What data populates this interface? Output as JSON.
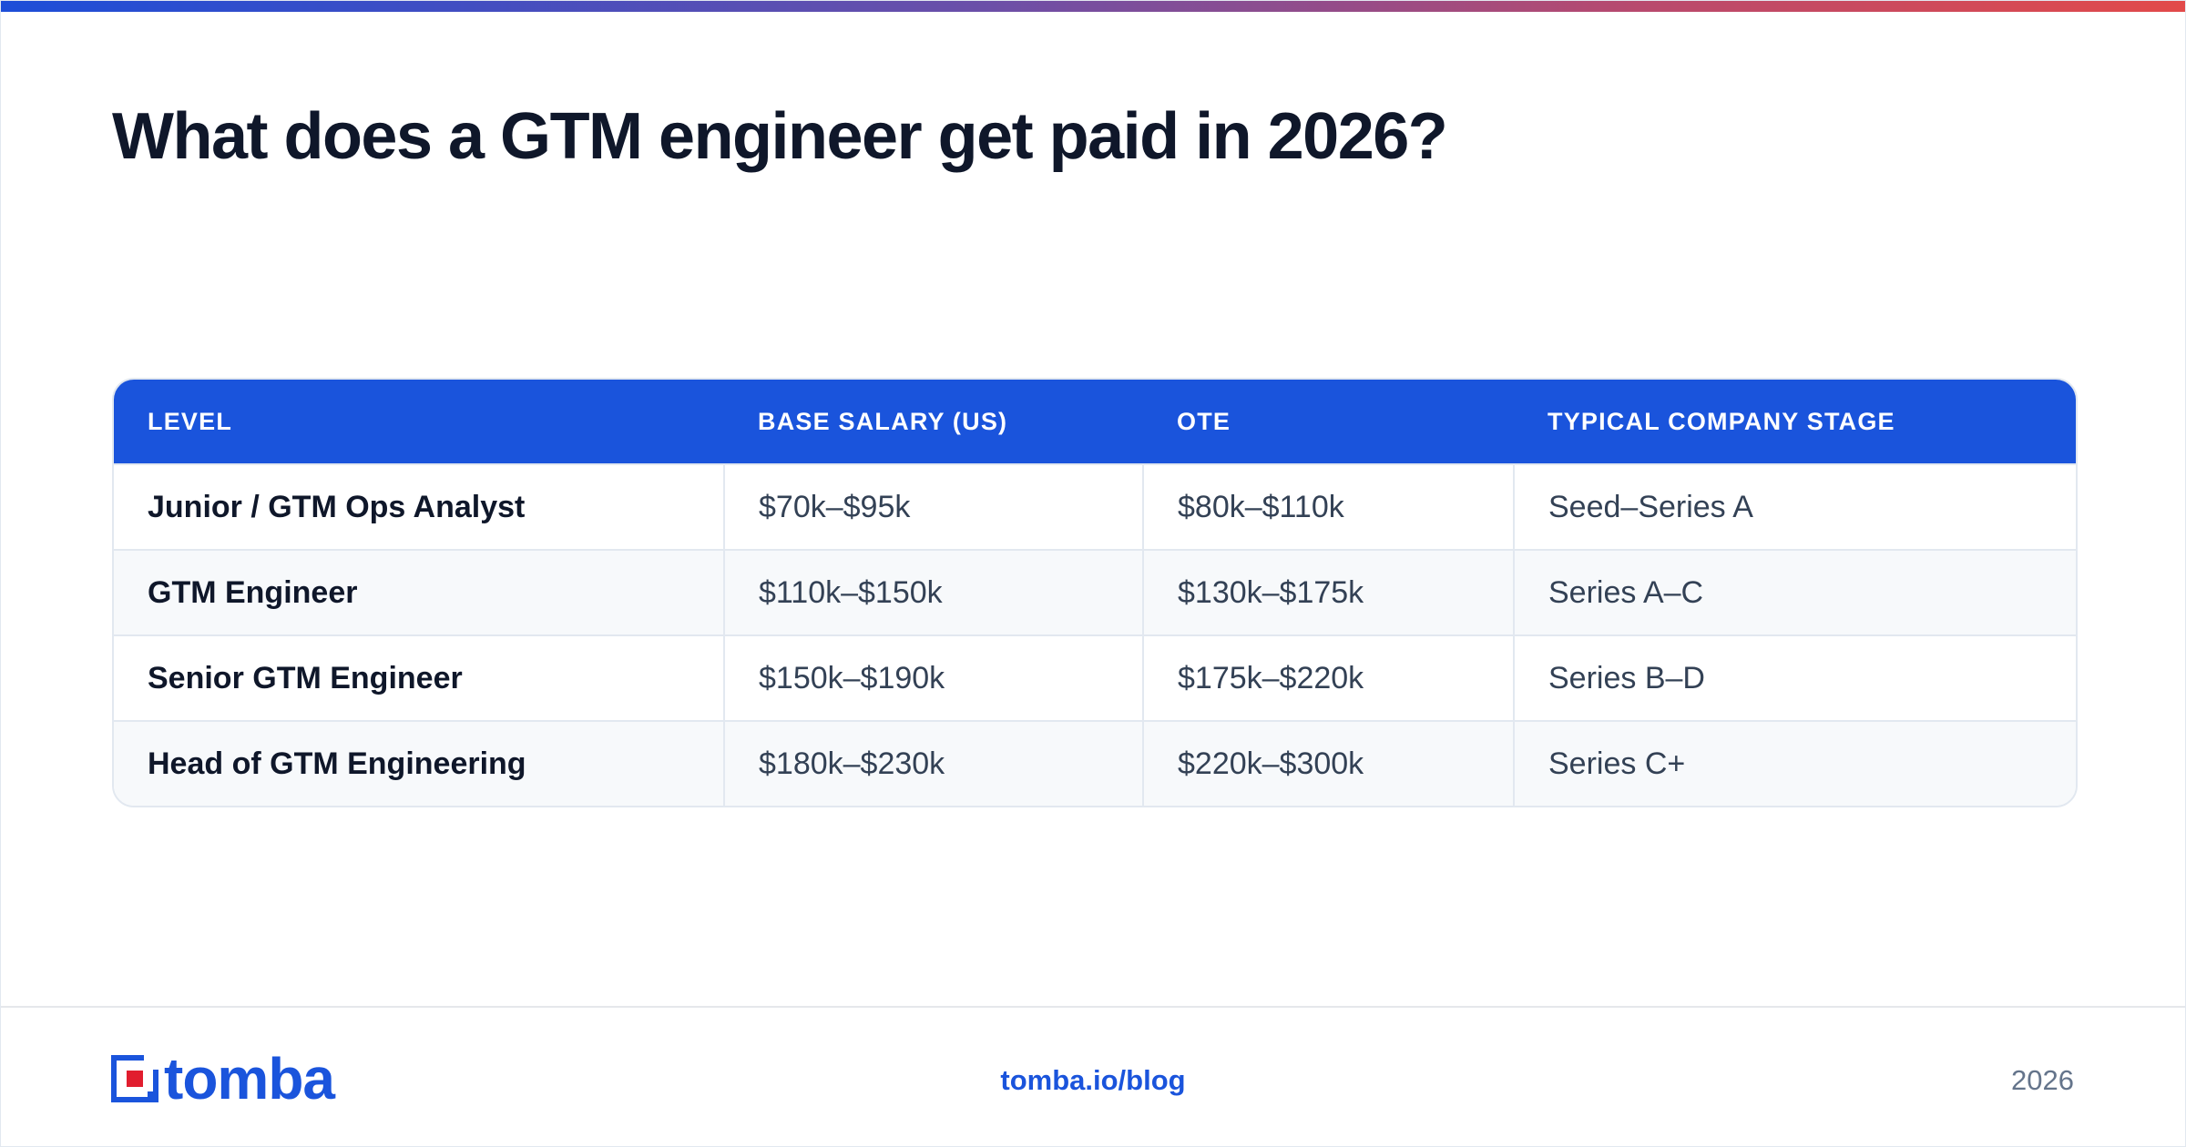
{
  "page": {
    "title": "What does a GTM engineer get paid in 2026?"
  },
  "colors": {
    "accent": "#1a54dc",
    "header_text": "#ffffff",
    "title_text": "#0f172a",
    "body_text": "#334155",
    "gradient": [
      "#1d4ed8",
      "#6b4fa8",
      "#b84a6e",
      "#e24a4a"
    ],
    "logo_red": "#e11d2e"
  },
  "table": {
    "headers": [
      "LEVEL",
      "BASE SALARY (US)",
      "OTE",
      "TYPICAL COMPANY STAGE"
    ],
    "rows": [
      [
        "Junior / GTM Ops Analyst",
        "$70k–$95k",
        "$80k–$110k",
        "Seed–Series A"
      ],
      [
        "GTM Engineer",
        "$110k–$150k",
        "$130k–$175k",
        "Series A–C"
      ],
      [
        "Senior GTM Engineer",
        "$150k–$190k",
        "$175k–$220k",
        "Series B–D"
      ],
      [
        "Head of GTM Engineering",
        "$180k–$230k",
        "$220k–$300k",
        "Series C+"
      ]
    ]
  },
  "footer": {
    "logo_icon": "tomba-logo-icon",
    "logo_text": "tomba",
    "link": "tomba.io/blog",
    "year": "2026"
  }
}
